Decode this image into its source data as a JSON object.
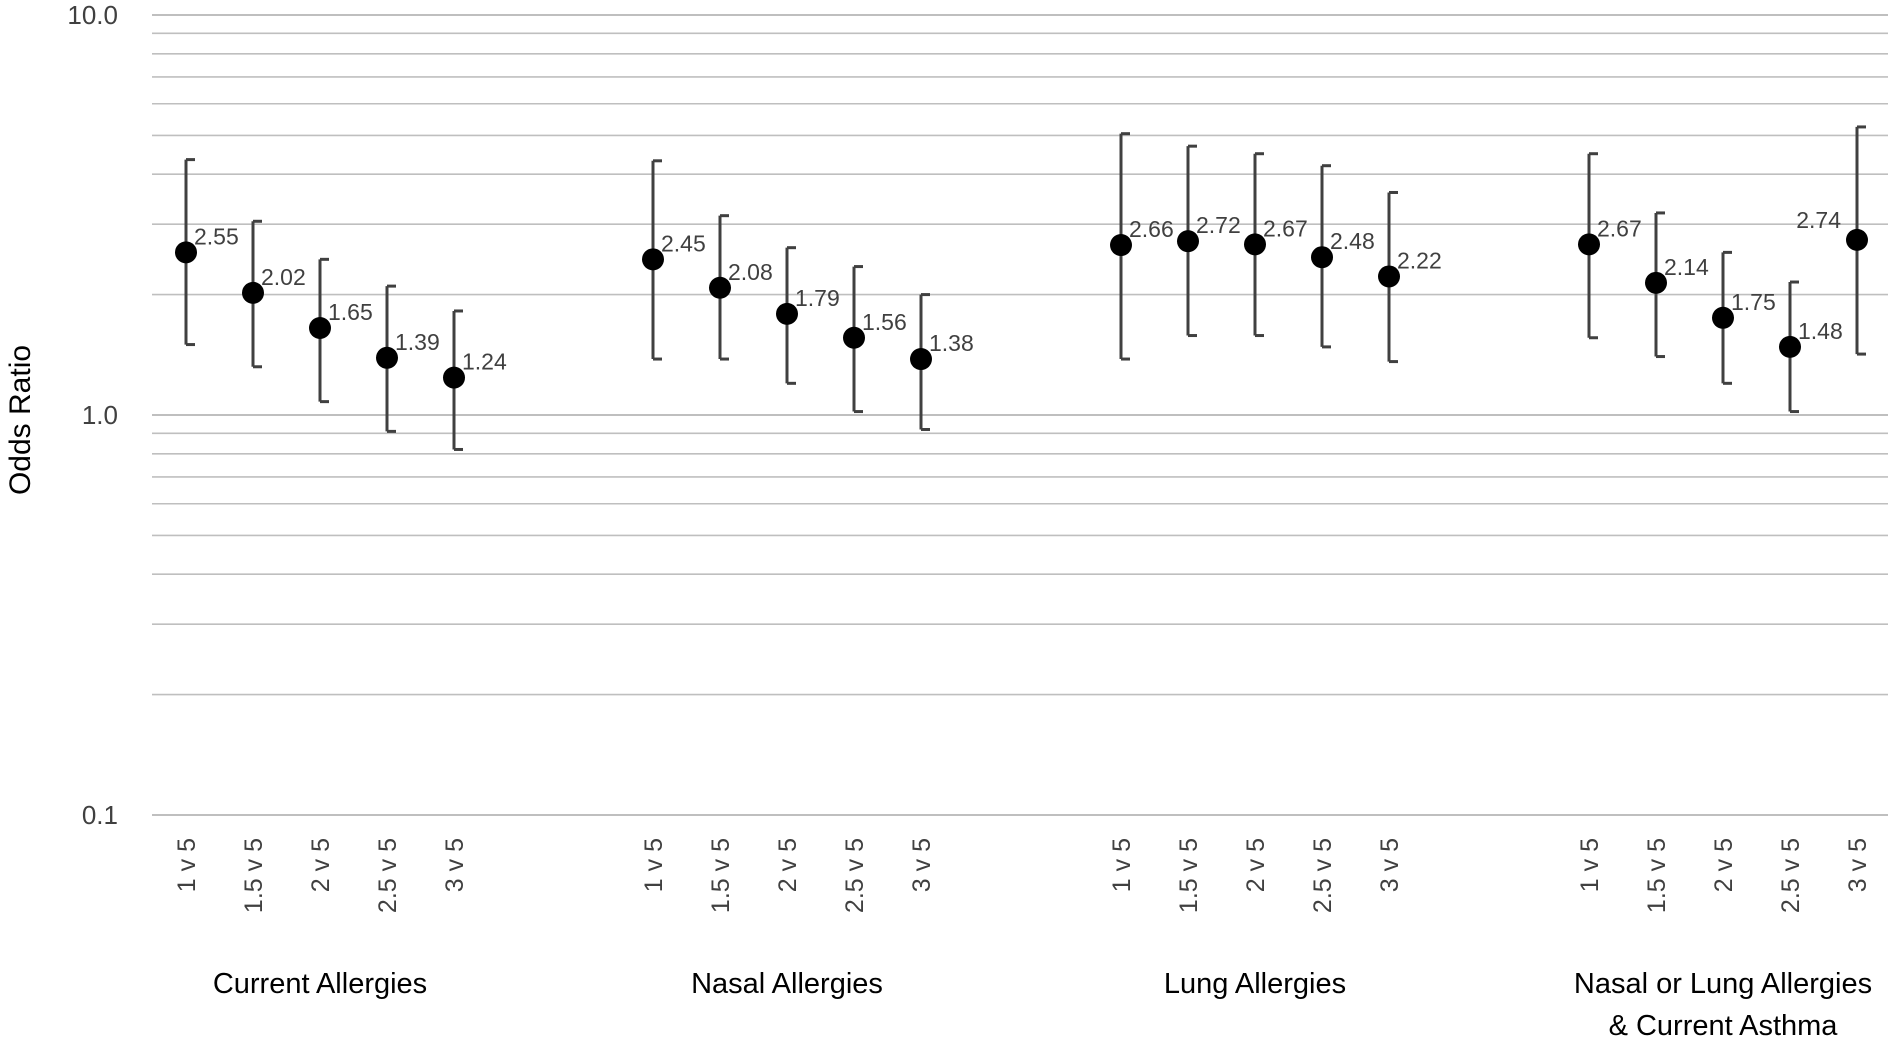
{
  "chart_data": {
    "type": "scatter",
    "title": "",
    "xlabel": "",
    "ylabel": "Odds Ratio",
    "y_scale": "log",
    "ylim": [
      0.1,
      10
    ],
    "y_ticks": [
      0.1,
      1.0,
      10.0
    ],
    "y_tick_labels": [
      "0.1",
      "1.0",
      "10.0"
    ],
    "grid": true,
    "legend": "none",
    "colors": {
      "marker": "#000000",
      "error_bar": "#404040",
      "gridline": "#bfbfbf",
      "text": "#404040"
    },
    "groups": [
      {
        "name": "Current Allergies",
        "categories": [
          "1 v 5",
          "1.5 v 5",
          "2 v 5",
          "2.5 v 5",
          "3 v 5"
        ],
        "values": [
          2.55,
          2.02,
          1.65,
          1.39,
          1.24
        ],
        "ci_low": [
          1.5,
          1.32,
          1.08,
          0.91,
          0.82
        ],
        "ci_high": [
          4.35,
          3.05,
          2.45,
          2.1,
          1.82
        ]
      },
      {
        "name": "Nasal Allergies",
        "categories": [
          "1 v 5",
          "1.5 v 5",
          "2 v 5",
          "2.5 v 5",
          "3 v 5"
        ],
        "values": [
          2.45,
          2.08,
          1.79,
          1.56,
          1.38
        ],
        "ci_low": [
          1.38,
          1.38,
          1.2,
          1.02,
          0.92
        ],
        "ci_high": [
          4.32,
          3.15,
          2.62,
          2.35,
          2.0
        ]
      },
      {
        "name": "Lung Allergies",
        "categories": [
          "1 v 5",
          "1.5 v 5",
          "2 v 5",
          "2.5 v 5",
          "3 v 5"
        ],
        "values": [
          2.66,
          2.72,
          2.67,
          2.48,
          2.22
        ],
        "ci_low": [
          1.38,
          1.58,
          1.58,
          1.48,
          1.36
        ],
        "ci_high": [
          5.05,
          4.7,
          4.5,
          4.2,
          3.6
        ]
      },
      {
        "name": "Nasal or Lung Allergies & Current Asthma",
        "label_lines": [
          "Nasal or Lung Allergies",
          "& Current Asthma"
        ],
        "categories": [
          "1 v 5",
          "1.5 v 5",
          "2 v 5",
          "2.5 v 5",
          "3 v 5"
        ],
        "values": [
          2.67,
          2.14,
          1.75,
          1.48,
          2.74
        ],
        "ci_low": [
          1.56,
          1.4,
          1.2,
          1.02,
          1.42
        ],
        "ci_high": [
          4.5,
          3.2,
          2.55,
          2.15,
          5.25
        ]
      }
    ]
  }
}
